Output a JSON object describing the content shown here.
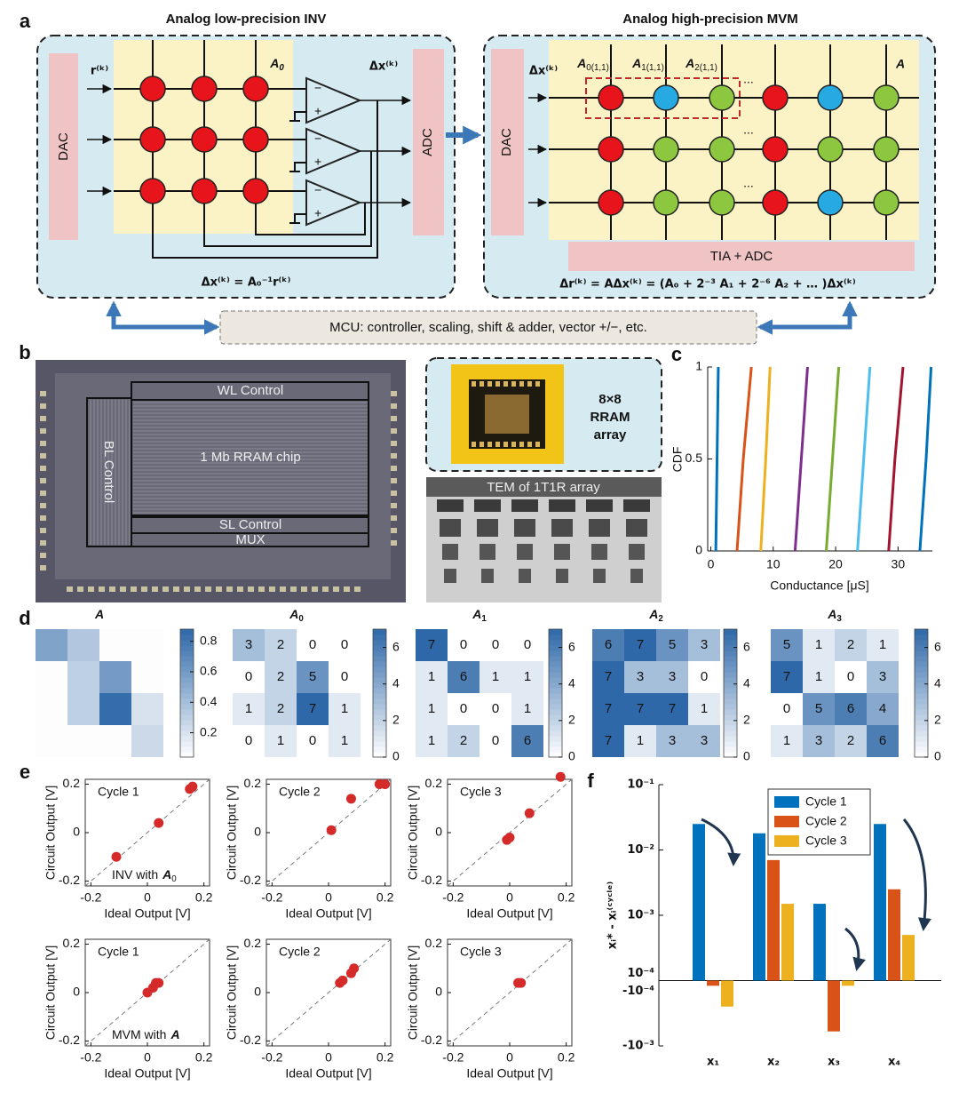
{
  "panel_labels": [
    "a",
    "b",
    "c",
    "d",
    "e",
    "f"
  ],
  "diagram": {
    "inv_title": "Analog low-precision INV",
    "mvm_title": "Analog high-precision MVM",
    "dac": "DAC",
    "adc": "ADC",
    "input_r": "r⁽ᵏ⁾",
    "matrix_a0": {
      "base": "A",
      "sub": "0"
    },
    "output_dx": "Δx⁽ᵏ⁾",
    "minus": "−",
    "plus": "+",
    "inv_equation": "Δx⁽ᵏ⁾ = A₀⁻¹r⁽ᵏ⁾",
    "input_dx": "Δx⁽ᵏ⁾",
    "tags": [
      {
        "base": "A",
        "sub": "0(1,1)"
      },
      {
        "base": "A",
        "sub": "1(1,1)"
      },
      {
        "base": "A",
        "sub": "2(1,1)"
      }
    ],
    "ellipsis": "...",
    "matrix_a": "A",
    "tia_adc": "TIA + ADC",
    "mvm_equation": "Δr⁽ᵏ⁾ = AΔx⁽ᵏ⁾ = (A₀ + 2⁻³ A₁ + 2⁻⁶ A₂ + … )Δx⁽ᵏ⁾",
    "mcu": "MCU: controller, scaling, shift & adder, vector +/−, etc."
  },
  "chip": {
    "wl": "WL Control",
    "bl": "BL Control",
    "core": "1 Mb RRAM chip",
    "sl": "SL Control",
    "mux": "MUX",
    "inset": [
      "8×8",
      "RRAM",
      "array"
    ],
    "tem": "TEM of 1T1R array"
  },
  "chart_data": [
    {
      "type": "line",
      "x_label": "Conductance [μS]",
      "y_label": "CDF",
      "xlim": [
        -0.5,
        35.5
      ],
      "xticks": [
        0,
        10,
        20,
        30
      ],
      "ylim": [
        0,
        1
      ],
      "yticks": [
        0,
        0.5,
        1
      ],
      "series": [
        {
          "color": "#0072BD",
          "x": [
            0.8,
            1.0,
            1.2
          ],
          "values": [
            0,
            0.5,
            1
          ]
        },
        {
          "color": "#D95319",
          "x": [
            4.2,
            5.2,
            6.5
          ],
          "values": [
            0,
            0.5,
            1
          ]
        },
        {
          "color": "#EDB120",
          "x": [
            8.0,
            8.8,
            9.5
          ],
          "values": [
            0,
            0.5,
            1
          ]
        },
        {
          "color": "#7E2F8E",
          "x": [
            13.5,
            14.5,
            15.5
          ],
          "values": [
            0,
            0.5,
            1
          ]
        },
        {
          "color": "#77AC30",
          "x": [
            18.5,
            19.5,
            20.5
          ],
          "values": [
            0,
            0.5,
            1
          ]
        },
        {
          "color": "#4DBEEE",
          "x": [
            23.5,
            24.5,
            25.5
          ],
          "values": [
            0,
            0.5,
            1
          ]
        },
        {
          "color": "#A2142F",
          "x": [
            28.5,
            29.5,
            30.8
          ],
          "values": [
            0,
            0.5,
            1
          ]
        },
        {
          "color": "#0072BD",
          "x": [
            33.5,
            34.5,
            35.3
          ],
          "values": [
            0,
            0.5,
            1
          ]
        }
      ]
    },
    {
      "type": "heatmap",
      "title": {
        "base": "A"
      },
      "show_values": false,
      "clim": [
        0.04,
        0.88
      ],
      "cticks": [
        0.2,
        0.4,
        0.6,
        0.8
      ],
      "values": [
        [
          0.55,
          0.35,
          0.05,
          0.05
        ],
        [
          0.05,
          0.3,
          0.6,
          0.05
        ],
        [
          0.05,
          0.3,
          0.85,
          0.2
        ],
        [
          0.05,
          0.05,
          0.05,
          0.25
        ]
      ]
    },
    {
      "type": "heatmap",
      "title": {
        "base": "A",
        "sub": "0"
      },
      "show_values": true,
      "clim": [
        0,
        7
      ],
      "cticks": [
        0,
        2,
        4,
        6
      ],
      "values": [
        [
          3,
          2,
          0,
          0
        ],
        [
          0,
          2,
          5,
          0
        ],
        [
          1,
          2,
          7,
          1
        ],
        [
          0,
          1,
          0,
          1
        ]
      ]
    },
    {
      "type": "heatmap",
      "title": {
        "base": "A",
        "sub": "1"
      },
      "show_values": true,
      "clim": [
        0,
        7
      ],
      "cticks": [
        0,
        2,
        4,
        6
      ],
      "values": [
        [
          7,
          0,
          0,
          0
        ],
        [
          1,
          6,
          1,
          1
        ],
        [
          1,
          0,
          0,
          1
        ],
        [
          1,
          2,
          0,
          6
        ]
      ]
    },
    {
      "type": "heatmap",
      "title": {
        "base": "A",
        "sub": "2"
      },
      "show_values": true,
      "clim": [
        0,
        7
      ],
      "cticks": [
        0,
        2,
        4,
        6
      ],
      "values": [
        [
          6,
          7,
          5,
          3
        ],
        [
          7,
          3,
          3,
          0
        ],
        [
          7,
          7,
          7,
          1
        ],
        [
          7,
          1,
          3,
          3
        ]
      ]
    },
    {
      "type": "heatmap",
      "title": {
        "base": "A",
        "sub": "3"
      },
      "show_values": true,
      "clim": [
        0,
        7
      ],
      "cticks": [
        0,
        2,
        4,
        6
      ],
      "values": [
        [
          5,
          1,
          2,
          1
        ],
        [
          7,
          1,
          0,
          3
        ],
        [
          0,
          5,
          6,
          4
        ],
        [
          1,
          3,
          2,
          6
        ]
      ]
    },
    {
      "type": "scatter",
      "label": "Cycle 1",
      "annotation": {
        "text": "INV with",
        "base": "A",
        "sub": "0"
      },
      "x_label": "Ideal Output [V]",
      "y_label": "Circuit Output [V]",
      "color": "#d42a2a",
      "diagonal": true,
      "xlim": [
        -0.22,
        0.22
      ],
      "ylim": [
        -0.22,
        0.22
      ],
      "xticks": [
        -0.2,
        0,
        0.2
      ],
      "yticks": [
        -0.2,
        0,
        0.2
      ],
      "x": [
        -0.11,
        0.04,
        0.15,
        0.16
      ],
      "values": [
        -0.1,
        0.04,
        0.18,
        0.19
      ]
    },
    {
      "type": "scatter",
      "label": "Cycle 2",
      "x_label": "Ideal Output [V]",
      "y_label": "Circuit Output [V]",
      "color": "#d42a2a",
      "diagonal": true,
      "xlim": [
        -0.22,
        0.22
      ],
      "ylim": [
        -0.22,
        0.22
      ],
      "xticks": [
        -0.2,
        0,
        0.2
      ],
      "yticks": [
        -0.2,
        0,
        0.2
      ],
      "x": [
        0.01,
        0.08,
        0.18,
        0.2
      ],
      "values": [
        0.01,
        0.14,
        0.2,
        0.2
      ]
    },
    {
      "type": "scatter",
      "label": "Cycle 3",
      "x_label": "Ideal Output [V]",
      "y_label": "Circuit Output [V]",
      "color": "#d42a2a",
      "diagonal": true,
      "xlim": [
        -0.22,
        0.22
      ],
      "ylim": [
        -0.22,
        0.22
      ],
      "xticks": [
        -0.2,
        0,
        0.2
      ],
      "yticks": [
        -0.2,
        0,
        0.2
      ],
      "x": [
        -0.01,
        0.0,
        0.07,
        0.18
      ],
      "values": [
        -0.03,
        -0.02,
        0.08,
        0.23
      ]
    },
    {
      "type": "scatter",
      "label": "Cycle 1",
      "annotation": {
        "text": "MVM with",
        "base": "A"
      },
      "x_label": "Ideal Output [V]",
      "y_label": "Circuit Output [V]",
      "color": "#d42a2a",
      "diagonal": true,
      "xlim": [
        -0.22,
        0.22
      ],
      "ylim": [
        -0.22,
        0.22
      ],
      "xticks": [
        -0.2,
        0,
        0.2
      ],
      "yticks": [
        -0.2,
        0,
        0.2
      ],
      "x": [
        0.0,
        0.02,
        0.03,
        0.04
      ],
      "values": [
        0.0,
        0.02,
        0.04,
        0.04
      ]
    },
    {
      "type": "scatter",
      "label": "Cycle 2",
      "x_label": "Ideal Output [V]",
      "y_label": "Circuit Output [V]",
      "color": "#d42a2a",
      "diagonal": true,
      "xlim": [
        -0.22,
        0.22
      ],
      "ylim": [
        -0.22,
        0.22
      ],
      "xticks": [
        -0.2,
        0,
        0.2
      ],
      "yticks": [
        -0.2,
        0,
        0.2
      ],
      "x": [
        0.04,
        0.05,
        0.08,
        0.09
      ],
      "values": [
        0.04,
        0.05,
        0.08,
        0.1
      ]
    },
    {
      "type": "scatter",
      "label": "Cycle 3",
      "x_label": "Ideal Output [V]",
      "y_label": "Circuit Output [V]",
      "color": "#d42a2a",
      "diagonal": true,
      "xlim": [
        -0.22,
        0.22
      ],
      "ylim": [
        -0.22,
        0.22
      ],
      "xticks": [
        -0.2,
        0,
        0.2
      ],
      "yticks": [
        -0.2,
        0,
        0.2
      ],
      "x": [
        0.03,
        0.04
      ],
      "values": [
        0.04,
        0.04
      ]
    },
    {
      "type": "bar",
      "y_label": "xᵢ* - xᵢ⁽ᶜʸᶜˡᵉ⁾",
      "categories": [
        "x₁",
        "x₂",
        "x₃",
        "x₄"
      ],
      "yscale": "symlog",
      "ylim": [
        -0.001,
        0.1
      ],
      "yticks": [
        {
          "value": 0.1,
          "label": "10⁻¹"
        },
        {
          "value": 0.01,
          "label": "10⁻²"
        },
        {
          "value": 0.001,
          "label": "10⁻³"
        },
        {
          "value": 0.0001,
          "label": "10⁻⁴"
        },
        {
          "value": -0.0001,
          "label": "-10⁻⁴"
        },
        {
          "value": -0.001,
          "label": "-10⁻³"
        }
      ],
      "legend": "upper-center",
      "series": [
        {
          "name": "Cycle 1",
          "color": "#0072BD",
          "values": [
            0.025,
            0.018,
            0.0015,
            0.025
          ]
        },
        {
          "name": "Cycle 2",
          "color": "#D95319",
          "values": [
            -0.00012,
            0.007,
            -0.0006,
            0.0025
          ]
        },
        {
          "name": "Cycle 3",
          "color": "#EDB120",
          "values": [
            -0.00025,
            0.0015,
            -0.00012,
            0.0005
          ]
        }
      ]
    }
  ]
}
